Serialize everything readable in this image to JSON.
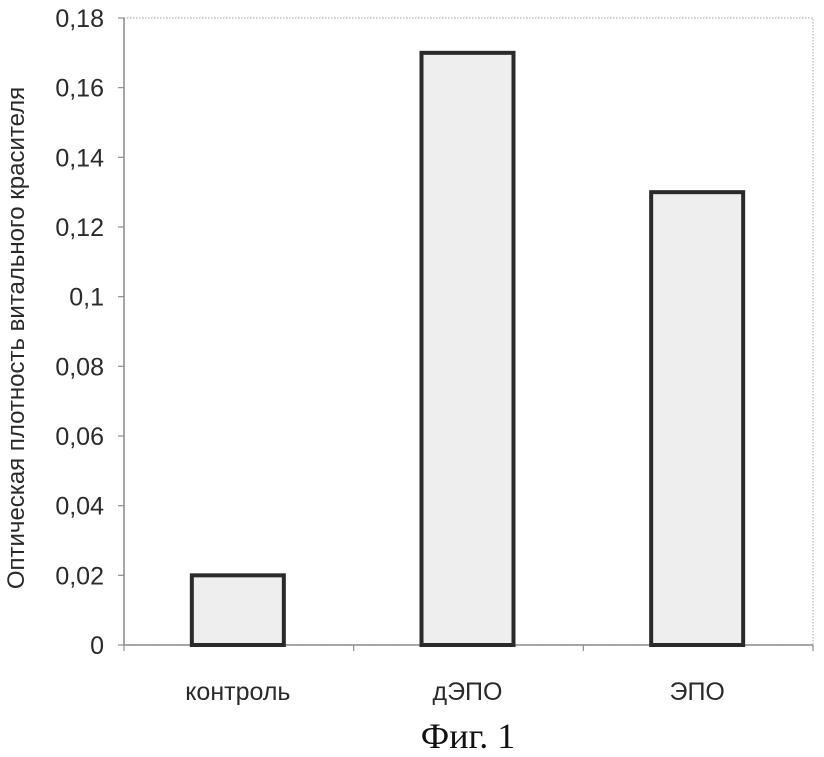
{
  "chart_data": {
    "type": "bar",
    "categories": [
      "контроль",
      "дЭПО",
      "ЭПО"
    ],
    "values": [
      0.02,
      0.17,
      0.13
    ],
    "title": "",
    "xlabel": "",
    "ylabel": "Оптическая плотность витального красителя",
    "ylim": [
      0,
      0.18
    ],
    "yticks": [
      0,
      0.02,
      0.04,
      0.06,
      0.08,
      0.1,
      0.12,
      0.14,
      0.16,
      0.18
    ],
    "ytick_labels": [
      "0",
      "0,02",
      "0,04",
      "0,06",
      "0,08",
      "0,1",
      "0,12",
      "0,14",
      "0,16",
      "0,18"
    ],
    "grid": false,
    "legend": "none",
    "bar_fill": "#eeeeee",
    "bar_stroke": "#2a2a2a"
  },
  "caption": "Фиг. 1"
}
